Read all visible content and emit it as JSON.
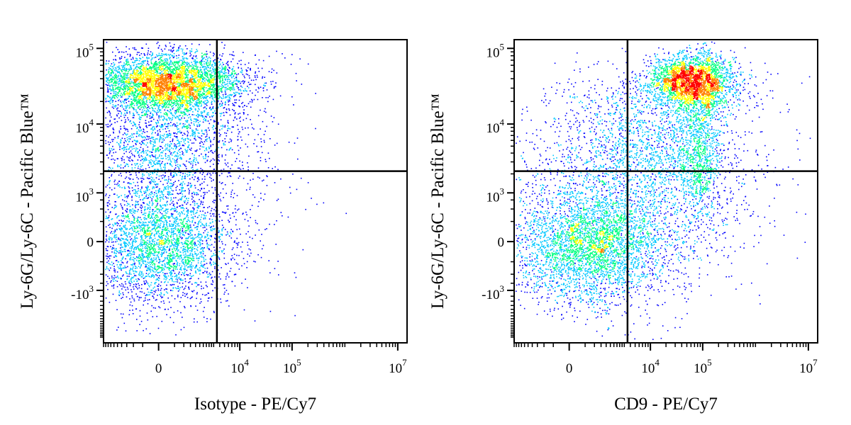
{
  "chart_data": [
    {
      "type": "scatter",
      "style": "flow cytometry density dot plot (biexponential axes)",
      "xlabel": "Isotype - PE/Cy7",
      "ylabel": "Ly-6G/Ly-6C - Pacific Blue™",
      "x_ticks": [
        {
          "value": 0,
          "base": "0",
          "exp": ""
        },
        {
          "value": 10000,
          "base": "10",
          "exp": "4"
        },
        {
          "value": 100000,
          "base": "10",
          "exp": "5"
        },
        {
          "value": 10000000,
          "base": "10",
          "exp": "7"
        }
      ],
      "y_ticks": [
        {
          "value": 100000,
          "base": "10",
          "exp": "5"
        },
        {
          "value": 10000,
          "base": "10",
          "exp": "4"
        },
        {
          "value": 1000,
          "base": "10",
          "exp": "3"
        },
        {
          "value": 0,
          "base": "0",
          "exp": ""
        },
        {
          "value": -1000,
          "base": "-10",
          "exp": "3"
        }
      ],
      "quadrant_gate": {
        "x": 3500,
        "y": 2200
      },
      "populations": [
        {
          "name": "upper-left",
          "x_center": 0,
          "y_center": 40000,
          "density": "high"
        },
        {
          "name": "lower-left",
          "x_center": 0,
          "y_center": 0,
          "density": "medium"
        }
      ],
      "color_scale": [
        "#0000ff",
        "#00c8ff",
        "#00ff80",
        "#ffff00",
        "#ff8000",
        "#ff0000"
      ]
    },
    {
      "type": "scatter",
      "style": "flow cytometry density dot plot (biexponential axes)",
      "xlabel": "CD9 - PE/Cy7",
      "ylabel": "Ly-6G/Ly-6C - Pacific Blue™",
      "x_ticks": [
        {
          "value": 0,
          "base": "0",
          "exp": ""
        },
        {
          "value": 10000,
          "base": "10",
          "exp": "4"
        },
        {
          "value": 100000,
          "base": "10",
          "exp": "5"
        },
        {
          "value": 10000000,
          "base": "10",
          "exp": "7"
        }
      ],
      "y_ticks": [
        {
          "value": 100000,
          "base": "10",
          "exp": "5"
        },
        {
          "value": 10000,
          "base": "10",
          "exp": "4"
        },
        {
          "value": 1000,
          "base": "10",
          "exp": "3"
        },
        {
          "value": 0,
          "base": "0",
          "exp": ""
        },
        {
          "value": -1000,
          "base": "-10",
          "exp": "3"
        }
      ],
      "quadrant_gate": {
        "x": 3500,
        "y": 2200
      },
      "populations": [
        {
          "name": "upper-right",
          "x_center": 70000,
          "y_center": 40000,
          "density": "high"
        },
        {
          "name": "lower-left",
          "x_center": 200,
          "y_center": 100,
          "density": "medium"
        }
      ],
      "color_scale": [
        "#0000ff",
        "#00c8ff",
        "#00ff80",
        "#ffff00",
        "#ff8000",
        "#ff0000"
      ]
    }
  ]
}
